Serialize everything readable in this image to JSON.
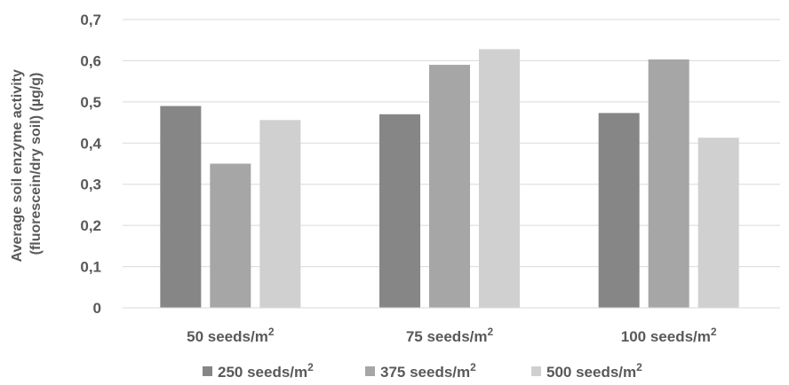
{
  "chart_data": {
    "type": "bar",
    "categories": [
      "50 seeds/m",
      "75 seeds/m",
      "100 seeds/m"
    ],
    "category_superscript": "2",
    "ylabel_lines": [
      "Average soil enzyme activity",
      "(fluorescein/dry soil) (µg/g)"
    ],
    "y_ticks": [
      "0",
      "0,1",
      "0,2",
      "0,3",
      "0,4",
      "0,5",
      "0,6",
      "0,7"
    ],
    "ylim": [
      0,
      0.7
    ],
    "grid": true,
    "legend_position": "bottom",
    "series": [
      {
        "name": "250 seeds/m",
        "superscript": "2",
        "color": "#868686",
        "values": [
          0.49,
          0.47,
          0.473
        ]
      },
      {
        "name": "375 seeds/m",
        "superscript": "2",
        "color": "#a6a6a6",
        "values": [
          0.35,
          0.59,
          0.603
        ]
      },
      {
        "name": "500 seeds/m",
        "superscript": "2",
        "color": "#d0d0d0",
        "values": [
          0.456,
          0.628,
          0.413
        ]
      }
    ]
  }
}
